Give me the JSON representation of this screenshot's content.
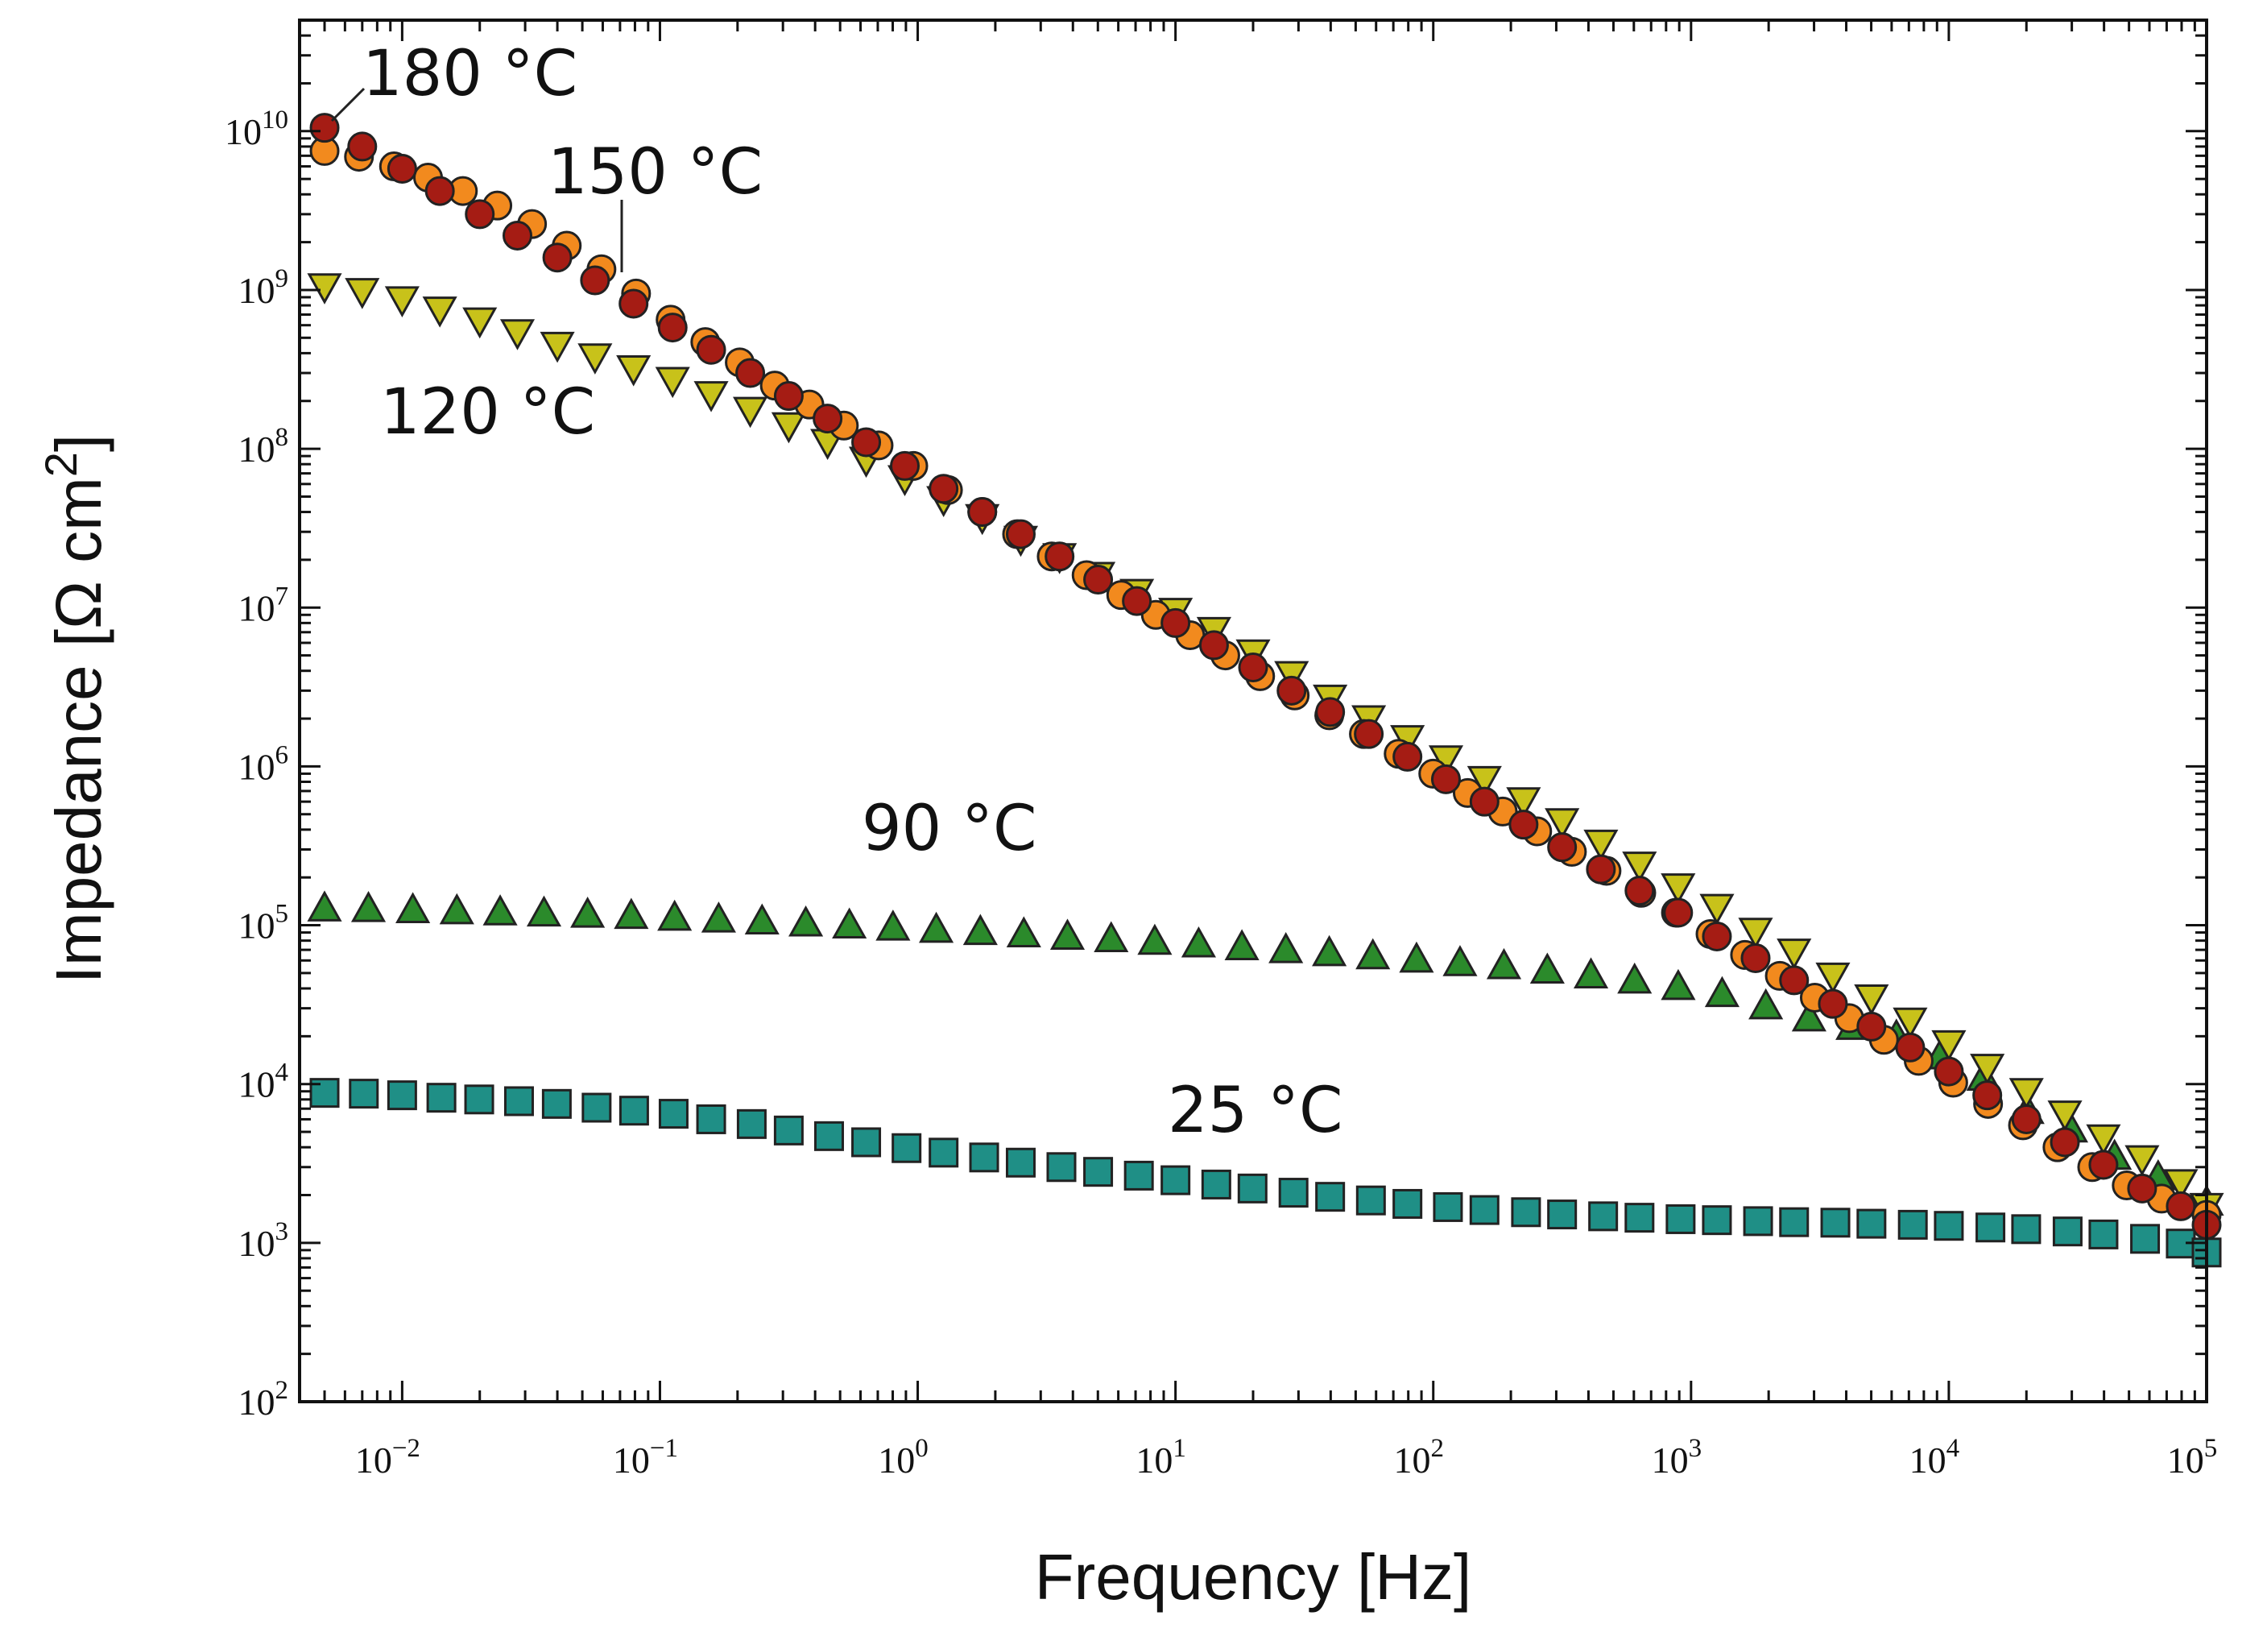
{
  "chart_data": {
    "type": "scatter",
    "xscale": "log",
    "yscale": "log",
    "xlabel": "Frequency [Hz]",
    "ylabel": "Impedance [Ω cm",
    "ylabel_sup": "2",
    "ylabel_close": "]",
    "xlim": [
      0.004,
      100000
    ],
    "ylim": [
      100,
      50000000000
    ],
    "x_ticks": [
      {
        "base": "10",
        "exp": "−2",
        "value": 0.01
      },
      {
        "base": "10",
        "exp": "−1",
        "value": 0.1
      },
      {
        "base": "10",
        "exp": "0",
        "value": 1
      },
      {
        "base": "10",
        "exp": "1",
        "value": 10
      },
      {
        "base": "10",
        "exp": "2",
        "value": 100
      },
      {
        "base": "10",
        "exp": "3",
        "value": 1000
      },
      {
        "base": "10",
        "exp": "4",
        "value": 10000
      },
      {
        "base": "10",
        "exp": "5",
        "value": 100000
      }
    ],
    "y_ticks": [
      {
        "base": "10",
        "exp": "2",
        "value": 100
      },
      {
        "base": "10",
        "exp": "3",
        "value": 1000
      },
      {
        "base": "10",
        "exp": "4",
        "value": 10000
      },
      {
        "base": "10",
        "exp": "5",
        "value": 100000
      },
      {
        "base": "10",
        "exp": "6",
        "value": 1000000
      },
      {
        "base": "10",
        "exp": "7",
        "value": 10000000
      },
      {
        "base": "10",
        "exp": "8",
        "value": 100000000
      },
      {
        "base": "10",
        "exp": "9",
        "value": 1000000000
      },
      {
        "base": "10",
        "exp": "10",
        "value": 10000000000
      }
    ],
    "series": [
      {
        "name": "25 °C",
        "marker": "square",
        "color": "#1f8f86",
        "points": [
          [
            0.005,
            8800
          ],
          [
            0.0071,
            8700
          ],
          [
            0.01,
            8500
          ],
          [
            0.0142,
            8200
          ],
          [
            0.0199,
            8000
          ],
          [
            0.0284,
            7800
          ],
          [
            0.0398,
            7500
          ],
          [
            0.0568,
            7100
          ],
          [
            0.0794,
            6800
          ],
          [
            0.113,
            6500
          ],
          [
            0.158,
            6000
          ],
          [
            0.227,
            5600
          ],
          [
            0.316,
            5100
          ],
          [
            0.453,
            4700
          ],
          [
            0.631,
            4300
          ],
          [
            0.905,
            3950
          ],
          [
            1.26,
            3700
          ],
          [
            1.81,
            3450
          ],
          [
            2.51,
            3200
          ],
          [
            3.61,
            3000
          ],
          [
            5.01,
            2800
          ],
          [
            7.21,
            2650
          ],
          [
            10,
            2480
          ],
          [
            14.4,
            2330
          ],
          [
            19.9,
            2200
          ],
          [
            28.7,
            2070
          ],
          [
            39.8,
            1950
          ],
          [
            57.3,
            1850
          ],
          [
            79.4,
            1760
          ],
          [
            114,
            1680
          ],
          [
            158,
            1610
          ],
          [
            229,
            1560
          ],
          [
            316,
            1510
          ],
          [
            456,
            1470
          ],
          [
            631,
            1440
          ],
          [
            911,
            1410
          ],
          [
            1260,
            1390
          ],
          [
            1820,
            1370
          ],
          [
            2510,
            1350
          ],
          [
            3630,
            1340
          ],
          [
            5010,
            1320
          ],
          [
            7250,
            1300
          ],
          [
            10000,
            1280
          ],
          [
            14500,
            1250
          ],
          [
            19950,
            1220
          ],
          [
            28900,
            1180
          ],
          [
            39800,
            1130
          ],
          [
            57700,
            1060
          ],
          [
            79400,
            990
          ],
          [
            100000,
            870
          ]
        ]
      },
      {
        "name": "90 °C",
        "marker": "triangle-up",
        "color": "#2b8a2b",
        "points": [
          [
            0.005,
            128000
          ],
          [
            0.0074,
            127000
          ],
          [
            0.011,
            125000
          ],
          [
            0.0163,
            123000
          ],
          [
            0.024,
            121000
          ],
          [
            0.0355,
            119000
          ],
          [
            0.0524,
            117000
          ],
          [
            0.0774,
            115000
          ],
          [
            0.114,
            112000
          ],
          [
            0.169,
            109000
          ],
          [
            0.249,
            106000
          ],
          [
            0.368,
            103000
          ],
          [
            0.543,
            100000
          ],
          [
            0.802,
            97000
          ],
          [
            1.18,
            94000
          ],
          [
            1.75,
            91000
          ],
          [
            2.58,
            88000
          ],
          [
            3.81,
            85000
          ],
          [
            5.63,
            82000
          ],
          [
            8.31,
            79000
          ],
          [
            12.3,
            76000
          ],
          [
            18.1,
            73000
          ],
          [
            26.8,
            70000
          ],
          [
            39.5,
            67000
          ],
          [
            58.3,
            64000
          ],
          [
            86.1,
            61000
          ],
          [
            127,
            58000
          ],
          [
            188,
            55500
          ],
          [
            277,
            52000
          ],
          [
            409,
            48500
          ],
          [
            604,
            45000
          ],
          [
            892,
            41000
          ],
          [
            1320,
            37000
          ],
          [
            1950,
            31000
          ],
          [
            2870,
            26000
          ],
          [
            4240,
            23000
          ],
          [
            6260,
            20000
          ],
          [
            9250,
            15000
          ],
          [
            13650,
            11000
          ],
          [
            20150,
            6800
          ],
          [
            29750,
            5200
          ],
          [
            43940,
            3500
          ],
          [
            64880,
            2600
          ],
          [
            100000,
            1800
          ]
        ]
      },
      {
        "name": "120 °C",
        "marker": "triangle-down",
        "color": "#c8c21a",
        "points": [
          [
            0.005,
            1050000000
          ],
          [
            0.007,
            980000000
          ],
          [
            0.01,
            870000000
          ],
          [
            0.014,
            750000000
          ],
          [
            0.02,
            640000000
          ],
          [
            0.028,
            540000000
          ],
          [
            0.04,
            450000000
          ],
          [
            0.056,
            380000000
          ],
          [
            0.079,
            320000000
          ],
          [
            0.112,
            270000000
          ],
          [
            0.158,
            220000000
          ],
          [
            0.224,
            175000000
          ],
          [
            0.316,
            140000000
          ],
          [
            0.447,
            110000000
          ],
          [
            0.631,
            85000000
          ],
          [
            0.891,
            65000000
          ],
          [
            1.26,
            48000000
          ],
          [
            1.78,
            37000000
          ],
          [
            2.51,
            27000000
          ],
          [
            3.55,
            21000000
          ],
          [
            5.01,
            16000000
          ],
          [
            7.08,
            12500000
          ],
          [
            10,
            9500000
          ],
          [
            14.1,
            7200000
          ],
          [
            20,
            5200000
          ],
          [
            28.2,
            3800000
          ],
          [
            39.8,
            2700000
          ],
          [
            56.2,
            2000000
          ],
          [
            79.4,
            1500000
          ],
          [
            112,
            1120000
          ],
          [
            158,
            830000
          ],
          [
            224,
            610000
          ],
          [
            316,
            450000
          ],
          [
            447,
            330000
          ],
          [
            631,
            240000
          ],
          [
            891,
            175000
          ],
          [
            1260,
            130000
          ],
          [
            1780,
            92000
          ],
          [
            2510,
            68000
          ],
          [
            3550,
            48000
          ],
          [
            5010,
            35000
          ],
          [
            7080,
            25000
          ],
          [
            10000,
            18000
          ],
          [
            14100,
            12800
          ],
          [
            20000,
            9000
          ],
          [
            28200,
            6500
          ],
          [
            39800,
            4600
          ],
          [
            56200,
            3400
          ],
          [
            79400,
            2400
          ],
          [
            100000,
            1700
          ]
        ]
      },
      {
        "name": "150 °C",
        "marker": "circle",
        "color": "#f28a1e",
        "points": [
          [
            0.005,
            7500000000
          ],
          [
            0.0068,
            6900000000
          ],
          [
            0.0093,
            6000000000
          ],
          [
            0.0126,
            5100000000
          ],
          [
            0.0172,
            4200000000
          ],
          [
            0.0234,
            3400000000
          ],
          [
            0.0319,
            2600000000
          ],
          [
            0.0435,
            1900000000
          ],
          [
            0.0593,
            1350000000
          ],
          [
            0.0808,
            950000000
          ],
          [
            0.11,
            650000000
          ],
          [
            0.15,
            470000000
          ],
          [
            0.204,
            350000000
          ],
          [
            0.279,
            250000000
          ],
          [
            0.38,
            190000000
          ],
          [
            0.517,
            140000000
          ],
          [
            0.705,
            105000000
          ],
          [
            0.961,
            78000000
          ],
          [
            1.31,
            55000000
          ],
          [
            1.78,
            40000000
          ],
          [
            2.43,
            29000000
          ],
          [
            3.31,
            21000000
          ],
          [
            4.52,
            16000000
          ],
          [
            6.16,
            12000000
          ],
          [
            8.39,
            9000000
          ],
          [
            11.4,
            6700000
          ],
          [
            15.6,
            5000000
          ],
          [
            21.3,
            3700000
          ],
          [
            29,
            2800000
          ],
          [
            39.5,
            2100000
          ],
          [
            53.8,
            1600000
          ],
          [
            73.4,
            1200000
          ],
          [
            100,
            900000
          ],
          [
            136,
            680000
          ],
          [
            186,
            520000
          ],
          [
            253,
            390000
          ],
          [
            345,
            290000
          ],
          [
            470,
            220000
          ],
          [
            641,
            160000
          ],
          [
            874,
            120000
          ],
          [
            1190,
            88000
          ],
          [
            1620,
            65000
          ],
          [
            2210,
            48000
          ],
          [
            3020,
            35000
          ],
          [
            4110,
            26000
          ],
          [
            5600,
            19000
          ],
          [
            7640,
            14000
          ],
          [
            10400,
            10200
          ],
          [
            14200,
            7500
          ],
          [
            19400,
            5500
          ],
          [
            26400,
            4000
          ],
          [
            36000,
            3000
          ],
          [
            49000,
            2300
          ],
          [
            66900,
            1900
          ],
          [
            100000,
            1500
          ]
        ]
      },
      {
        "name": "180 °C",
        "marker": "circle",
        "color": "#a51c14",
        "points": [
          [
            0.005,
            10500000000
          ],
          [
            0.007,
            8000000000
          ],
          [
            0.01,
            5800000000
          ],
          [
            0.014,
            4200000000
          ],
          [
            0.02,
            3000000000
          ],
          [
            0.028,
            2200000000
          ],
          [
            0.04,
            1600000000
          ],
          [
            0.056,
            1150000000
          ],
          [
            0.079,
            820000000
          ],
          [
            0.112,
            580000000
          ],
          [
            0.158,
            420000000
          ],
          [
            0.224,
            300000000
          ],
          [
            0.316,
            215000000
          ],
          [
            0.447,
            155000000
          ],
          [
            0.631,
            110000000
          ],
          [
            0.891,
            78000000
          ],
          [
            1.26,
            56000000
          ],
          [
            1.78,
            40000000
          ],
          [
            2.51,
            29000000
          ],
          [
            3.55,
            21000000
          ],
          [
            5.01,
            15000000
          ],
          [
            7.08,
            11000000
          ],
          [
            10,
            8000000
          ],
          [
            14.1,
            5800000
          ],
          [
            20,
            4200000
          ],
          [
            28.2,
            3000000
          ],
          [
            39.8,
            2200000
          ],
          [
            56.2,
            1600000
          ],
          [
            79.4,
            1150000
          ],
          [
            112,
            830000
          ],
          [
            158,
            600000
          ],
          [
            224,
            430000
          ],
          [
            316,
            310000
          ],
          [
            447,
            225000
          ],
          [
            631,
            165000
          ],
          [
            891,
            120000
          ],
          [
            1260,
            85000
          ],
          [
            1780,
            62000
          ],
          [
            2510,
            45000
          ],
          [
            3550,
            32000
          ],
          [
            5010,
            23000
          ],
          [
            7080,
            17000
          ],
          [
            10000,
            12000
          ],
          [
            14100,
            8500
          ],
          [
            20000,
            6000
          ],
          [
            28200,
            4300
          ],
          [
            39800,
            3100
          ],
          [
            56200,
            2200
          ],
          [
            79400,
            1700
          ],
          [
            100000,
            1300
          ]
        ]
      }
    ],
    "annotations": [
      {
        "text": "180 °C",
        "series": "180 °C"
      },
      {
        "text": "150 °C",
        "series": "150 °C"
      },
      {
        "text": "120 °C",
        "series": "120 °C"
      },
      {
        "text": "90 °C",
        "series": "90 °C"
      },
      {
        "text": "25 °C",
        "series": "25 °C"
      }
    ],
    "legend": "none",
    "grid": false
  }
}
